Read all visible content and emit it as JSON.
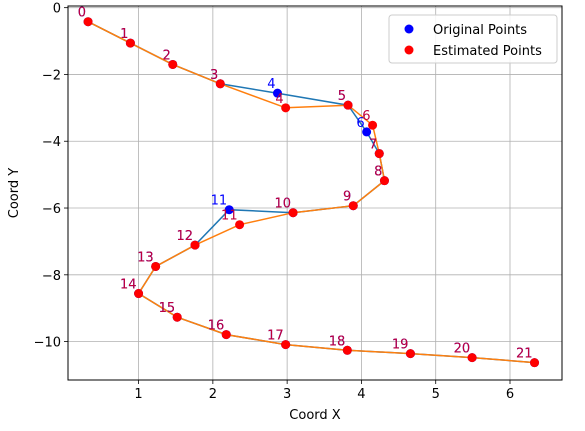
{
  "chart_data": {
    "type": "scatter",
    "xlabel": "Coord X",
    "ylabel": "Coord Y",
    "xlim": [
      0.05,
      6.7
    ],
    "ylim": [
      -11.15,
      0.05
    ],
    "xticks": [
      1,
      2,
      3,
      4,
      5,
      6
    ],
    "yticks": [
      0,
      -2,
      -4,
      -6,
      -8,
      -10
    ],
    "grid": true,
    "legend_position": "top-right",
    "colors": {
      "original": "#1f77b4",
      "estimated": "#ff7f0e",
      "original_marker": "#0000ff",
      "estimated_marker": "#ff0000",
      "estimated_label": "#c0003c",
      "grid": "#b0b0b0"
    },
    "series": [
      {
        "name": "Original Points",
        "marker_color": "#0000ff",
        "line_color": "#1f77b4",
        "points": [
          {
            "label": "0",
            "x": 0.32,
            "y": -0.42
          },
          {
            "label": "1",
            "x": 0.89,
            "y": -1.06
          },
          {
            "label": "2",
            "x": 1.46,
            "y": -1.7
          },
          {
            "label": "3",
            "x": 2.1,
            "y": -2.28
          },
          {
            "label": "4",
            "x": 2.87,
            "y": -2.56
          },
          {
            "label": "5",
            "x": 3.82,
            "y": -2.92
          },
          {
            "label": "6",
            "x": 4.07,
            "y": -3.72
          },
          {
            "label": "7",
            "x": 4.24,
            "y": -4.37
          },
          {
            "label": "8",
            "x": 4.31,
            "y": -5.18
          },
          {
            "label": "9",
            "x": 3.89,
            "y": -5.93
          },
          {
            "label": "10",
            "x": 3.08,
            "y": -6.14
          },
          {
            "label": "11",
            "x": 2.22,
            "y": -6.05
          },
          {
            "label": "12",
            "x": 1.76,
            "y": -7.11
          },
          {
            "label": "13",
            "x": 1.23,
            "y": -7.75
          },
          {
            "label": "14",
            "x": 1.0,
            "y": -8.56
          },
          {
            "label": "15",
            "x": 1.52,
            "y": -9.27
          },
          {
            "label": "16",
            "x": 2.18,
            "y": -9.79
          },
          {
            "label": "17",
            "x": 2.98,
            "y": -10.09
          },
          {
            "label": "18",
            "x": 3.81,
            "y": -10.26
          },
          {
            "label": "19",
            "x": 4.66,
            "y": -10.36
          },
          {
            "label": "20",
            "x": 5.49,
            "y": -10.48
          },
          {
            "label": "21",
            "x": 6.33,
            "y": -10.63
          }
        ]
      },
      {
        "name": "Estimated Points",
        "marker_color": "#ff0000",
        "line_color": "#ff7f0e",
        "points": [
          {
            "label": "0",
            "x": 0.32,
            "y": -0.42
          },
          {
            "label": "1",
            "x": 0.89,
            "y": -1.06
          },
          {
            "label": "2",
            "x": 1.46,
            "y": -1.7
          },
          {
            "label": "3",
            "x": 2.1,
            "y": -2.28
          },
          {
            "label": "4",
            "x": 2.98,
            "y": -3.0
          },
          {
            "label": "5",
            "x": 3.82,
            "y": -2.92
          },
          {
            "label": "6",
            "x": 4.15,
            "y": -3.52
          },
          {
            "label": "7",
            "x": 4.24,
            "y": -4.37
          },
          {
            "label": "8",
            "x": 4.31,
            "y": -5.18
          },
          {
            "label": "9",
            "x": 3.89,
            "y": -5.93
          },
          {
            "label": "10",
            "x": 3.08,
            "y": -6.14
          },
          {
            "label": "11",
            "x": 2.36,
            "y": -6.5
          },
          {
            "label": "12",
            "x": 1.76,
            "y": -7.11
          },
          {
            "label": "13",
            "x": 1.23,
            "y": -7.75
          },
          {
            "label": "14",
            "x": 1.0,
            "y": -8.56
          },
          {
            "label": "15",
            "x": 1.52,
            "y": -9.27
          },
          {
            "label": "16",
            "x": 2.18,
            "y": -9.79
          },
          {
            "label": "17",
            "x": 2.98,
            "y": -10.09
          },
          {
            "label": "18",
            "x": 3.81,
            "y": -10.26
          },
          {
            "label": "19",
            "x": 4.66,
            "y": -10.36
          },
          {
            "label": "20",
            "x": 5.49,
            "y": -10.48
          },
          {
            "label": "21",
            "x": 6.33,
            "y": -10.63
          }
        ]
      }
    ]
  }
}
